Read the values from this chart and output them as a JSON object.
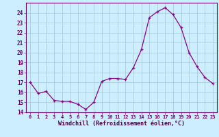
{
  "x": [
    0,
    1,
    2,
    3,
    4,
    5,
    6,
    7,
    8,
    9,
    10,
    11,
    12,
    13,
    14,
    15,
    16,
    17,
    18,
    19,
    20,
    21,
    22,
    23
  ],
  "y": [
    17.0,
    15.9,
    16.1,
    15.2,
    15.1,
    15.1,
    14.8,
    14.3,
    15.0,
    17.1,
    17.4,
    17.4,
    17.3,
    18.5,
    20.3,
    23.5,
    24.1,
    24.5,
    23.8,
    22.5,
    20.0,
    18.6,
    17.5,
    16.9
  ],
  "xlim": [
    -0.5,
    23.5
  ],
  "ylim": [
    14,
    25
  ],
  "yticks": [
    14,
    15,
    16,
    17,
    18,
    19,
    20,
    21,
    22,
    23,
    24
  ],
  "xticks": [
    0,
    1,
    2,
    3,
    4,
    5,
    6,
    7,
    8,
    9,
    10,
    11,
    12,
    13,
    14,
    15,
    16,
    17,
    18,
    19,
    20,
    21,
    22,
    23
  ],
  "xlabel": "Windchill (Refroidissement éolien,°C)",
  "line_color": "#880088",
  "marker": "+",
  "bg_color": "#cceeff",
  "grid_color": "#99bbcc",
  "axis_color": "#660066",
  "tick_color": "#660066",
  "label_color": "#440044"
}
